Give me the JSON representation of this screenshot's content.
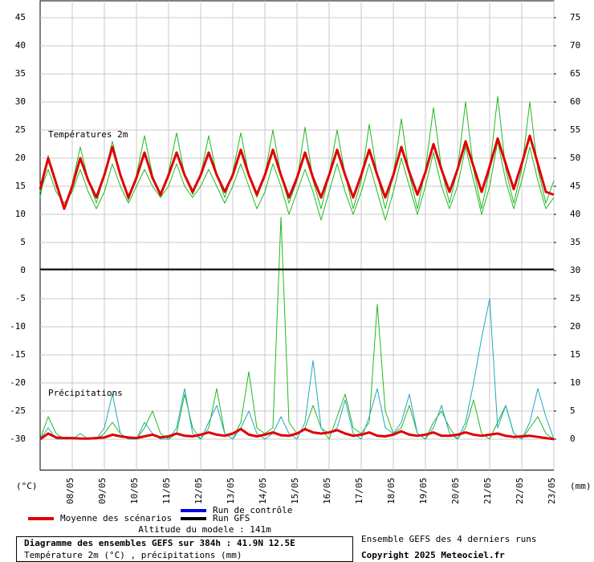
{
  "chart_data": {
    "type": "line",
    "title": "Diagramme des ensembles GEFS sur 384h : 41.9N 12.5E",
    "subtitle": "Température 2m (°C) , précipitations (mm)",
    "panel_labels": [
      "Températures 2m",
      "Précipitations"
    ],
    "ylabel": "(°C)",
    "y2label": "(mm)",
    "altitude": "Altitude du modele : 141m",
    "source": "Ensemble GEFS des 4 derniers runs",
    "copyright": "Copyright 2025 Meteociel.fr",
    "legend": [
      {
        "name": "Moyenne des scénarios",
        "color": "#e00000"
      },
      {
        "name": "Run de contrôle",
        "color": "#0000e0"
      },
      {
        "name": "Run GFS",
        "color": "#000000"
      }
    ],
    "categories": [
      null,
      null,
      null,
      null,
      "08/05",
      null,
      null,
      null,
      "09/05",
      null,
      null,
      null,
      "10/05",
      null,
      null,
      null,
      "11/05",
      null,
      null,
      null,
      "12/05",
      null,
      null,
      null,
      "13/05",
      null,
      null,
      null,
      "14/05",
      null,
      null,
      null,
      "15/05",
      null,
      null,
      null,
      "16/05",
      null,
      null,
      null,
      "17/05",
      null,
      null,
      null,
      "18/05",
      null,
      null,
      null,
      "19/05",
      null,
      null,
      null,
      "20/05",
      null,
      null,
      null,
      "21/05",
      null,
      null,
      null,
      "22/05",
      null,
      null,
      null,
      "23/05"
    ],
    "ylim": [
      -35.5,
      48
    ],
    "yticks": [
      -30,
      -25,
      -20,
      -15,
      -10,
      -5,
      0,
      5,
      10,
      15,
      20,
      25,
      30,
      35,
      40,
      45
    ],
    "y2lim": [
      -5.5,
      78
    ],
    "y2ticks": [
      0,
      5,
      10,
      15,
      20,
      25,
      30,
      35,
      40,
      45,
      50,
      55,
      60,
      65,
      70,
      75
    ],
    "grid": true,
    "series": [
      {
        "color": "#22b822",
        "width": 1,
        "values": [
          13,
          20.5,
          15,
          11,
          15.5,
          22,
          16,
          12,
          17,
          23,
          17,
          12.5,
          17,
          24,
          17,
          13,
          17.5,
          24.5,
          17,
          13.5,
          17,
          24,
          17,
          13,
          17.5,
          24.5,
          17,
          13,
          17,
          25,
          17,
          12,
          16,
          25.5,
          16,
          11,
          17,
          25,
          17,
          11,
          16,
          26,
          17,
          11,
          17,
          27,
          17,
          11,
          18,
          29,
          18,
          12,
          18,
          30,
          18,
          11,
          18,
          31,
          18,
          12,
          18,
          30,
          18,
          12,
          16
        ]
      },
      {
        "color": "#22b822",
        "width": 1,
        "values": [
          14,
          18,
          14,
          12,
          14,
          18,
          14,
          11,
          14,
          19,
          15,
          12,
          15,
          18,
          15,
          13,
          15,
          19,
          15,
          13,
          15,
          18,
          15,
          12,
          15,
          19,
          15,
          11,
          14,
          19,
          15,
          10,
          14,
          18,
          14,
          9,
          14,
          19,
          14,
          10,
          14,
          19,
          14,
          9,
          14,
          20,
          15,
          10,
          15,
          21,
          15,
          11,
          15,
          22,
          16,
          10,
          15,
          23,
          16,
          11,
          16,
          22,
          16,
          11,
          13
        ]
      },
      {
        "color": "#22b822",
        "width": 1,
        "axis": "y2",
        "values": [
          0,
          4,
          1,
          0,
          0,
          0,
          0,
          0,
          1,
          3,
          1,
          0,
          0,
          2,
          5,
          1,
          0,
          1,
          8,
          2,
          0,
          2,
          9,
          1,
          0,
          3,
          12,
          2,
          1,
          2,
          39.5,
          3,
          1,
          2,
          6,
          2,
          0,
          4,
          8,
          2,
          1,
          3,
          24,
          5,
          1,
          2,
          6,
          1,
          0,
          3,
          5,
          2,
          0,
          2,
          7,
          1,
          0,
          3,
          6,
          1,
          0,
          2,
          4,
          1,
          0
        ]
      },
      {
        "color": "#20a8c0",
        "width": 1,
        "axis": "y2",
        "values": [
          0,
          2,
          0,
          0,
          0,
          1,
          0,
          0,
          2,
          8,
          1,
          0,
          0,
          3,
          1,
          0,
          0,
          2,
          9,
          1,
          0,
          3,
          6,
          1,
          0,
          2,
          5,
          1,
          0,
          1,
          4,
          1,
          0,
          3,
          14,
          2,
          1,
          2,
          7,
          1,
          0,
          4,
          9,
          2,
          1,
          3,
          8,
          1,
          0,
          2,
          6,
          1,
          0,
          3,
          10,
          18,
          25,
          2,
          6,
          1,
          0,
          3,
          9,
          4,
          0
        ]
      },
      {
        "color": "#e00000",
        "width": 3,
        "values": [
          14.5,
          20,
          15.5,
          11,
          15,
          20,
          16,
          13,
          17,
          22,
          17,
          13,
          16.5,
          21,
          16.5,
          13.5,
          17,
          21,
          17,
          14,
          17,
          21,
          17,
          14,
          17,
          21.5,
          17,
          13.5,
          17,
          21.5,
          17,
          13,
          16.5,
          21,
          16.5,
          13,
          17,
          21.5,
          17,
          13,
          17,
          21.5,
          17,
          13,
          17,
          22,
          17.5,
          13.5,
          17.5,
          22.5,
          18,
          14,
          18,
          23,
          18.5,
          14,
          18.5,
          23.5,
          19,
          14.5,
          19,
          24,
          19,
          14,
          13.5
        ]
      },
      {
        "color": "#e00000",
        "width": 3,
        "axis": "y2",
        "values": [
          0,
          1,
          0.3,
          0.2,
          0.2,
          0.1,
          0.1,
          0.2,
          0.3,
          0.8,
          0.5,
          0.3,
          0.2,
          0.5,
          0.8,
          0.3,
          0.5,
          1,
          0.6,
          0.5,
          0.8,
          1.2,
          0.8,
          0.6,
          1,
          1.8,
          0.8,
          0.5,
          0.8,
          1.2,
          0.7,
          0.6,
          1,
          1.8,
          1.2,
          1,
          1.2,
          1.6,
          1,
          0.6,
          0.8,
          1.2,
          0.6,
          0.5,
          0.8,
          1.4,
          0.8,
          0.6,
          0.8,
          1.2,
          0.6,
          0.6,
          0.8,
          1.2,
          0.8,
          0.6,
          0.8,
          1,
          0.6,
          0.4,
          0.5,
          0.6,
          0.4,
          0.2,
          0
        ]
      }
    ]
  }
}
